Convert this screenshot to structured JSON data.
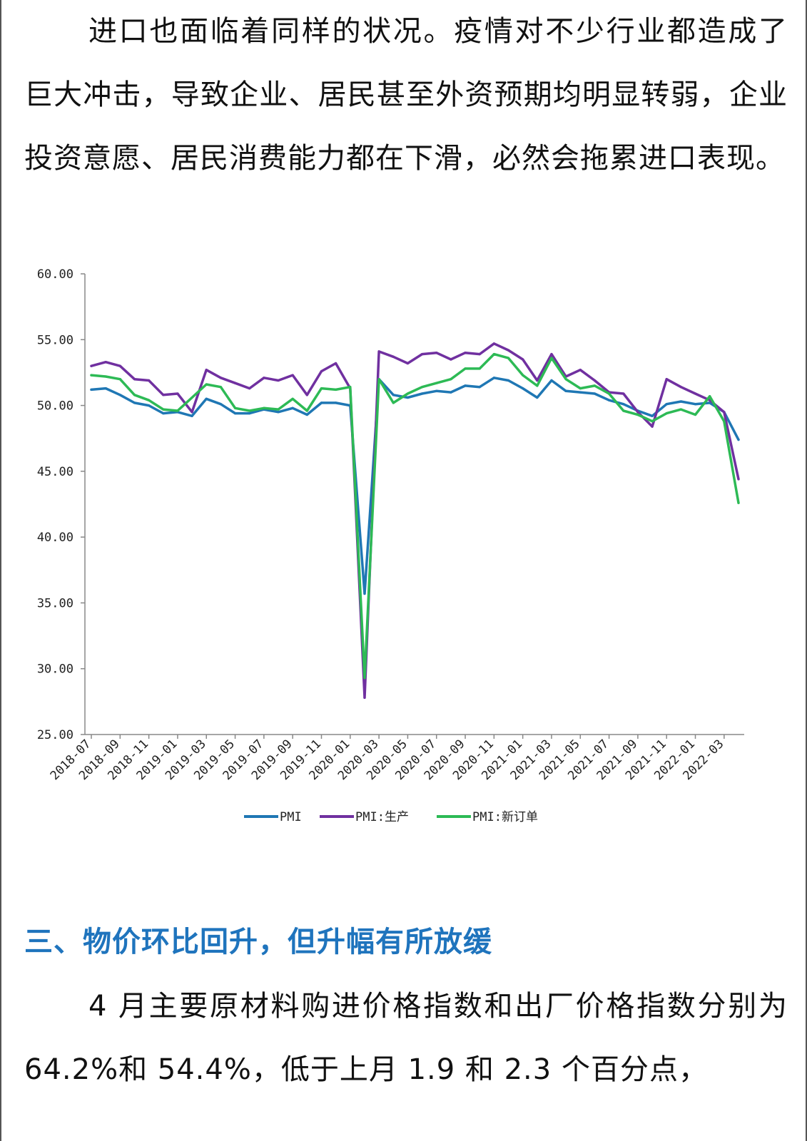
{
  "article": {
    "paragraph_top": "进口也面临着同样的状况。疫情对不少行业都造成了巨大冲击，导致企业、居民甚至外资预期均明显转弱，企业投资意愿、居民消费能力都在下滑，必然会拖累进口表现。",
    "section_title": "三、物价环比回升，但升幅有所放缓",
    "paragraph_bottom": "4 月主要原材料购进价格指数和出厂价格指数分别为 64.2%和 54.4%，低于上月 1.9 和 2.3 个百分点，"
  },
  "chart_data": {
    "type": "line",
    "title": "",
    "xlabel": "",
    "ylabel": "",
    "ylim": [
      25,
      60
    ],
    "yticks": [
      "60.00",
      "55.00",
      "50.00",
      "45.00",
      "40.00",
      "35.00",
      "30.00",
      "25.00"
    ],
    "x": [
      "2018-07",
      "2018-08",
      "2018-09",
      "2018-10",
      "2018-11",
      "2018-12",
      "2019-01",
      "2019-02",
      "2019-03",
      "2019-04",
      "2019-05",
      "2019-06",
      "2019-07",
      "2019-08",
      "2019-09",
      "2019-10",
      "2019-11",
      "2019-12",
      "2020-01",
      "2020-02",
      "2020-03",
      "2020-04",
      "2020-05",
      "2020-06",
      "2020-07",
      "2020-08",
      "2020-09",
      "2020-10",
      "2020-11",
      "2020-12",
      "2021-01",
      "2021-02",
      "2021-03",
      "2021-04",
      "2021-05",
      "2021-06",
      "2021-07",
      "2021-08",
      "2021-09",
      "2021-10",
      "2021-11",
      "2021-12",
      "2022-01",
      "2022-02",
      "2022-03",
      "2022-04"
    ],
    "xticks": [
      "2018-07",
      "2018-09",
      "2018-11",
      "2019-01",
      "2019-03",
      "2019-05",
      "2019-07",
      "2019-09",
      "2019-11",
      "2020-01",
      "2020-03",
      "2020-05",
      "2020-07",
      "2020-09",
      "2020-11",
      "2021-01",
      "2021-03",
      "2021-05",
      "2021-07",
      "2021-09",
      "2021-11",
      "2022-01",
      "2022-03"
    ],
    "series": [
      {
        "name": "PMI",
        "color": "#1f77b4",
        "values": [
          51.2,
          51.3,
          50.8,
          50.2,
          50.0,
          49.4,
          49.5,
          49.2,
          50.5,
          50.1,
          49.4,
          49.4,
          49.7,
          49.5,
          49.8,
          49.3,
          50.2,
          50.2,
          50.0,
          35.7,
          52.0,
          50.8,
          50.6,
          50.9,
          51.1,
          51.0,
          51.5,
          51.4,
          52.1,
          51.9,
          51.3,
          50.6,
          51.9,
          51.1,
          51.0,
          50.9,
          50.4,
          50.1,
          49.6,
          49.2,
          50.1,
          50.3,
          50.1,
          50.2,
          49.5,
          47.4
        ]
      },
      {
        "name": "PMI:生产",
        "color": "#7030a0",
        "values": [
          53.0,
          53.3,
          53.0,
          52.0,
          51.9,
          50.8,
          50.9,
          49.5,
          52.7,
          52.1,
          51.7,
          51.3,
          52.1,
          51.9,
          52.3,
          50.8,
          52.6,
          53.2,
          51.3,
          27.8,
          54.1,
          53.7,
          53.2,
          53.9,
          54.0,
          53.5,
          54.0,
          53.9,
          54.7,
          54.2,
          53.5,
          51.9,
          53.9,
          52.2,
          52.7,
          51.9,
          51.0,
          50.9,
          49.5,
          48.4,
          52.0,
          51.4,
          50.9,
          50.4,
          49.5,
          44.4
        ]
      },
      {
        "name": "PMI:新订单",
        "color": "#2dba55",
        "values": [
          52.3,
          52.2,
          52.0,
          50.8,
          50.4,
          49.7,
          49.6,
          50.6,
          51.6,
          51.4,
          49.8,
          49.6,
          49.8,
          49.7,
          50.5,
          49.6,
          51.3,
          51.2,
          51.4,
          29.3,
          52.0,
          50.2,
          50.9,
          51.4,
          51.7,
          52.0,
          52.8,
          52.8,
          53.9,
          53.6,
          52.3,
          51.5,
          53.6,
          52.0,
          51.3,
          51.5,
          50.9,
          49.6,
          49.3,
          48.8,
          49.4,
          49.7,
          49.3,
          50.7,
          48.8,
          42.6
        ]
      }
    ],
    "grid": false,
    "legend_position": "bottom"
  }
}
